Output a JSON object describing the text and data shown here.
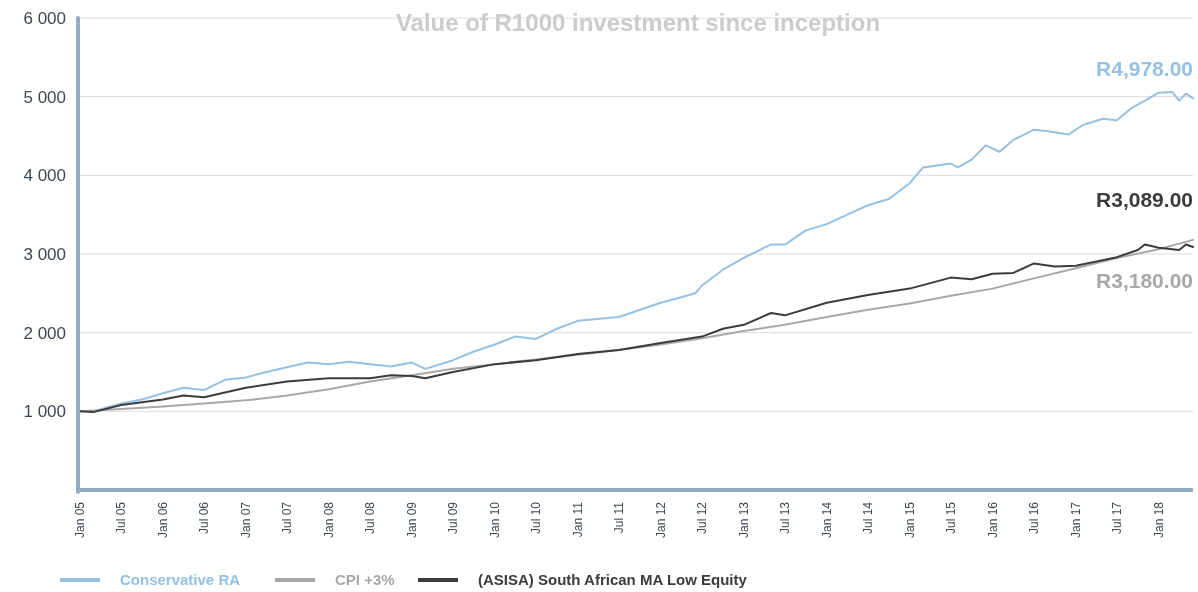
{
  "chart_data": {
    "type": "line",
    "title": "Value of R1000 investment since inception",
    "xlim": [
      "2005-01",
      "2018-06"
    ],
    "xticks": [
      {
        "value": "2005-01",
        "label": "Jan 05"
      },
      {
        "value": "2005-07",
        "label": "Jul 05"
      },
      {
        "value": "2006-01",
        "label": "Jan 06"
      },
      {
        "value": "2006-07",
        "label": "Jul 06"
      },
      {
        "value": "2007-01",
        "label": "Jan 07"
      },
      {
        "value": "2007-07",
        "label": "Jul 07"
      },
      {
        "value": "2008-01",
        "label": "Jan 08"
      },
      {
        "value": "2008-07",
        "label": "Jul 08"
      },
      {
        "value": "2009-01",
        "label": "Jan 09"
      },
      {
        "value": "2009-07",
        "label": "Jul 09"
      },
      {
        "value": "2010-01",
        "label": "Jan 10"
      },
      {
        "value": "2010-07",
        "label": "Jul 10"
      },
      {
        "value": "2011-01",
        "label": "Jan 11"
      },
      {
        "value": "2011-07",
        "label": "Jul 11"
      },
      {
        "value": "2012-01",
        "label": "Jan 12"
      },
      {
        "value": "2012-07",
        "label": "Jul 12"
      },
      {
        "value": "2013-01",
        "label": "Jan 13"
      },
      {
        "value": "2013-07",
        "label": "Jul 13"
      },
      {
        "value": "2014-01",
        "label": "Jan 14"
      },
      {
        "value": "2014-07",
        "label": "Jul 14"
      },
      {
        "value": "2015-01",
        "label": "Jan 15"
      },
      {
        "value": "2015-07",
        "label": "Jul 15"
      },
      {
        "value": "2016-01",
        "label": "Jan 16"
      },
      {
        "value": "2016-07",
        "label": "Jul 16"
      },
      {
        "value": "2017-01",
        "label": "Jan 17"
      },
      {
        "value": "2017-07",
        "label": "Jul 17"
      },
      {
        "value": "2018-01",
        "label": "Jan 18"
      }
    ],
    "ylim": [
      0,
      6000
    ],
    "yticks": [
      {
        "value": 1000,
        "label": "1 000"
      },
      {
        "value": 2000,
        "label": "2 000"
      },
      {
        "value": 3000,
        "label": "3 000"
      },
      {
        "value": 4000,
        "label": "4 000"
      },
      {
        "value": 5000,
        "label": "5 000"
      },
      {
        "value": 6000,
        "label": "6 000"
      }
    ],
    "grid": "y",
    "legend": "bottom left",
    "marker": "none",
    "line_style": "solid",
    "series": [
      {
        "name": "Conservative RA",
        "color": "#95c1e4",
        "x": [
          "2005-01",
          "2005-03",
          "2005-07",
          "2005-10",
          "2006-01",
          "2006-04",
          "2006-07",
          "2006-10",
          "2007-01",
          "2007-04",
          "2007-07",
          "2007-10",
          "2008-01",
          "2008-04",
          "2008-07",
          "2008-10",
          "2009-01",
          "2009-03",
          "2009-07",
          "2009-10",
          "2010-01",
          "2010-04",
          "2010-07",
          "2010-10",
          "2011-01",
          "2011-07",
          "2012-01",
          "2012-04",
          "2012-06",
          "2012-07",
          "2012-10",
          "2013-01",
          "2013-04",
          "2013-05",
          "2013-07",
          "2013-10",
          "2014-01",
          "2014-04",
          "2014-07",
          "2014-10",
          "2015-01",
          "2015-03",
          "2015-07",
          "2015-08",
          "2015-10",
          "2015-12",
          "2016-02",
          "2016-04",
          "2016-07",
          "2016-09",
          "2016-12",
          "2017-02",
          "2017-05",
          "2017-07",
          "2017-09",
          "2017-11",
          "2018-01",
          "2018-03",
          "2018-04",
          "2018-05",
          "2018-06"
        ],
        "values": [
          1000,
          1000,
          1100,
          1150,
          1230,
          1300,
          1270,
          1400,
          1430,
          1500,
          1560,
          1620,
          1600,
          1630,
          1600,
          1570,
          1620,
          1540,
          1650,
          1760,
          1850,
          1950,
          1920,
          2050,
          2150,
          2200,
          2380,
          2450,
          2500,
          2600,
          2800,
          2950,
          3080,
          3120,
          3120,
          3300,
          3380,
          3500,
          3620,
          3700,
          3900,
          4100,
          4150,
          4100,
          4200,
          4380,
          4300,
          4450,
          4580,
          4560,
          4520,
          4640,
          4720,
          4700,
          4850,
          4950,
          5050,
          5060,
          4950,
          5040,
          4978
        ]
      },
      {
        "name": "CPI +3%",
        "color": "#a8a8a8",
        "x": [
          "2005-01",
          "2005-07",
          "2006-01",
          "2006-07",
          "2007-01",
          "2007-07",
          "2008-01",
          "2008-07",
          "2009-01",
          "2009-07",
          "2010-01",
          "2010-07",
          "2011-01",
          "2011-07",
          "2012-01",
          "2012-07",
          "2013-01",
          "2013-07",
          "2014-01",
          "2014-07",
          "2015-01",
          "2015-07",
          "2016-01",
          "2016-07",
          "2017-01",
          "2017-07",
          "2018-01",
          "2018-06"
        ],
        "values": [
          1000,
          1030,
          1060,
          1100,
          1140,
          1200,
          1280,
          1380,
          1460,
          1540,
          1600,
          1660,
          1720,
          1780,
          1850,
          1930,
          2020,
          2100,
          2200,
          2290,
          2370,
          2470,
          2560,
          2690,
          2820,
          2950,
          3060,
          3180
        ]
      },
      {
        "name": "(ASISA) South African MA Low Equity",
        "color": "#3c3c3c",
        "x": [
          "2005-01",
          "2005-03",
          "2005-07",
          "2006-01",
          "2006-04",
          "2006-07",
          "2007-01",
          "2007-07",
          "2008-01",
          "2008-07",
          "2008-10",
          "2009-01",
          "2009-03",
          "2009-07",
          "2010-01",
          "2010-07",
          "2011-01",
          "2011-07",
          "2012-01",
          "2012-07",
          "2012-10",
          "2013-01",
          "2013-05",
          "2013-07",
          "2014-01",
          "2014-07",
          "2015-01",
          "2015-07",
          "2015-10",
          "2016-01",
          "2016-04",
          "2016-07",
          "2016-10",
          "2017-01",
          "2017-07",
          "2017-10",
          "2017-11",
          "2018-01",
          "2018-04",
          "2018-05",
          "2018-06"
        ],
        "values": [
          1000,
          990,
          1080,
          1150,
          1200,
          1180,
          1300,
          1380,
          1420,
          1420,
          1460,
          1450,
          1420,
          1500,
          1600,
          1650,
          1730,
          1780,
          1870,
          1950,
          2050,
          2100,
          2250,
          2220,
          2380,
          2480,
          2560,
          2700,
          2680,
          2750,
          2760,
          2880,
          2840,
          2850,
          2960,
          3050,
          3120,
          3080,
          3050,
          3120,
          3089
        ]
      }
    ],
    "annotations": [
      {
        "text": "R4,978.00",
        "x": "2018-06",
        "y": 4978
      },
      {
        "text": "R3,089.00",
        "x": "2018-06",
        "y": 3089
      },
      {
        "text": "R3,180.00",
        "x": "2018-06",
        "y": 3180
      }
    ]
  }
}
